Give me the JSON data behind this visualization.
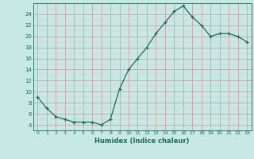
{
  "x": [
    0,
    1,
    2,
    3,
    4,
    5,
    6,
    7,
    8,
    9,
    10,
    11,
    12,
    13,
    14,
    15,
    16,
    17,
    18,
    19,
    20,
    21,
    22,
    23
  ],
  "y": [
    9,
    7,
    5.5,
    5,
    4.5,
    4.5,
    4.5,
    4,
    5,
    10.5,
    14,
    16,
    18,
    20.5,
    22.5,
    24.5,
    25.5,
    23.5,
    22,
    20,
    20.5,
    20.5,
    20,
    19
  ],
  "xlabel": "Humidex (Indice chaleur)",
  "line_color": "#1e6b5b",
  "marker": "+",
  "bg_color": "#c8e8e4",
  "grid_major_color": "#d0a0a8",
  "grid_minor_color": "#ddc8cc",
  "text_color": "#1e6b5b",
  "xlim": [
    -0.5,
    23.5
  ],
  "ylim": [
    3,
    26
  ],
  "yticks": [
    4,
    6,
    8,
    10,
    12,
    14,
    16,
    18,
    20,
    22,
    24
  ],
  "xticks": [
    0,
    1,
    2,
    3,
    4,
    5,
    6,
    7,
    8,
    9,
    10,
    11,
    12,
    13,
    14,
    15,
    16,
    17,
    18,
    19,
    20,
    21,
    22,
    23
  ]
}
